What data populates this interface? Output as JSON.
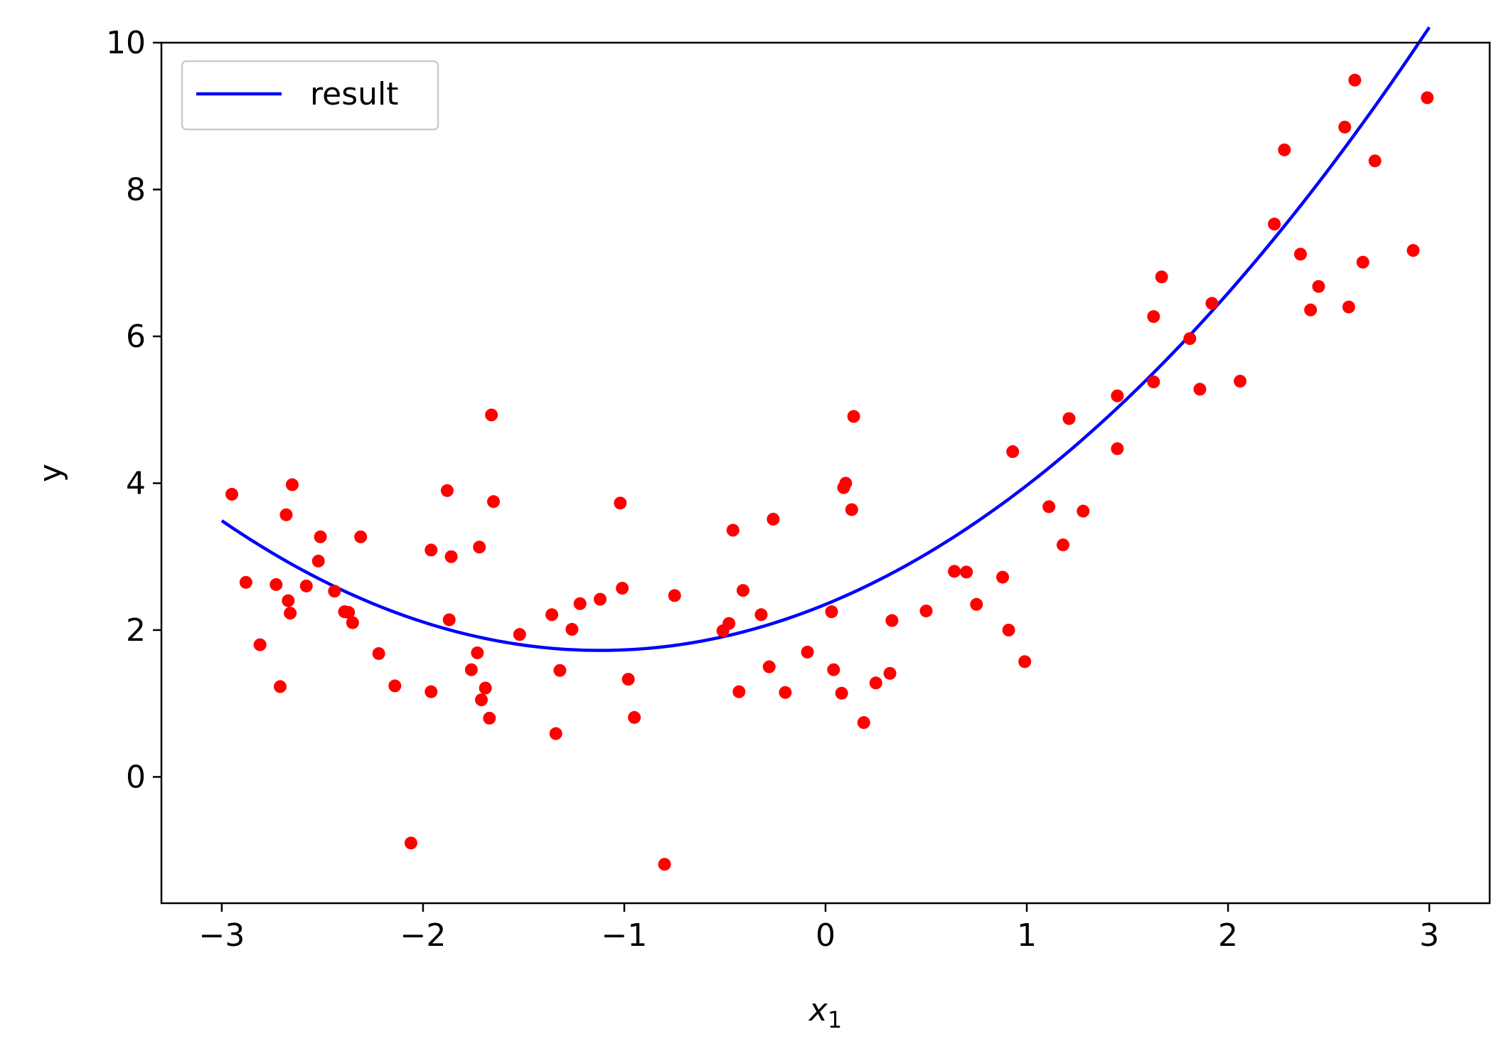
{
  "chart_data": {
    "type": "scatter",
    "title": "",
    "xlabel": "x",
    "xlabel_sub": "1",
    "ylabel": "y",
    "xlim": [
      -3.3,
      3.3
    ],
    "ylim": [
      -1.72,
      10.0
    ],
    "x_ticks": [
      -3,
      -2,
      -1,
      0,
      1,
      2,
      3
    ],
    "x_tick_labels": [
      "−3",
      "−2",
      "−1",
      "0",
      "1",
      "2",
      "3"
    ],
    "y_ticks": [
      0,
      2,
      4,
      6,
      8,
      10
    ],
    "y_tick_labels": [
      "0",
      "2",
      "4",
      "6",
      "8",
      "10"
    ],
    "grid": false,
    "legend": {
      "position": "top-left",
      "entries": [
        "result"
      ]
    },
    "series": [
      {
        "name": "result",
        "kind": "line",
        "color": "#0000ff",
        "equation": "y = 0.5*x^2 + x*1.12 + 2.35",
        "x_range": [
          -3,
          3
        ]
      },
      {
        "kind": "scatter",
        "color": "#ff0000",
        "points": [
          [
            -2.95,
            3.85
          ],
          [
            -2.88,
            2.65
          ],
          [
            -2.81,
            1.8
          ],
          [
            -2.73,
            2.62
          ],
          [
            -2.71,
            1.23
          ],
          [
            -2.68,
            3.57
          ],
          [
            -2.67,
            2.4
          ],
          [
            -2.66,
            2.23
          ],
          [
            -2.65,
            3.98
          ],
          [
            -2.58,
            2.6
          ],
          [
            -2.52,
            2.94
          ],
          [
            -2.51,
            3.27
          ],
          [
            -2.44,
            2.53
          ],
          [
            -2.39,
            2.25
          ],
          [
            -2.37,
            2.24
          ],
          [
            -2.35,
            2.1
          ],
          [
            -2.31,
            3.27
          ],
          [
            -2.22,
            1.68
          ],
          [
            -2.14,
            1.24
          ],
          [
            -2.06,
            -0.9
          ],
          [
            -1.96,
            3.09
          ],
          [
            -1.96,
            1.16
          ],
          [
            -1.88,
            3.9
          ],
          [
            -1.87,
            2.14
          ],
          [
            -1.86,
            3.0
          ],
          [
            -1.76,
            1.46
          ],
          [
            -1.73,
            1.69
          ],
          [
            -1.72,
            3.13
          ],
          [
            -1.71,
            1.05
          ],
          [
            -1.69,
            1.21
          ],
          [
            -1.67,
            0.8
          ],
          [
            -1.66,
            4.93
          ],
          [
            -1.65,
            3.75
          ],
          [
            -1.52,
            1.94
          ],
          [
            -1.36,
            2.21
          ],
          [
            -1.34,
            0.59
          ],
          [
            -1.32,
            1.45
          ],
          [
            -1.26,
            2.01
          ],
          [
            -1.22,
            2.36
          ],
          [
            -1.12,
            2.42
          ],
          [
            -1.02,
            3.73
          ],
          [
            -1.01,
            2.57
          ],
          [
            -0.98,
            1.33
          ],
          [
            -0.95,
            0.81
          ],
          [
            -0.8,
            -1.19
          ],
          [
            -0.75,
            2.47
          ],
          [
            -0.51,
            1.99
          ],
          [
            -0.48,
            2.09
          ],
          [
            -0.46,
            3.36
          ],
          [
            -0.43,
            1.16
          ],
          [
            -0.41,
            2.54
          ],
          [
            -0.32,
            2.21
          ],
          [
            -0.28,
            1.5
          ],
          [
            -0.26,
            3.51
          ],
          [
            -0.2,
            1.15
          ],
          [
            -0.09,
            1.7
          ],
          [
            0.03,
            2.25
          ],
          [
            0.04,
            1.46
          ],
          [
            0.08,
            1.14
          ],
          [
            0.09,
            3.94
          ],
          [
            0.1,
            4.0
          ],
          [
            0.13,
            3.64
          ],
          [
            0.14,
            4.91
          ],
          [
            0.19,
            0.74
          ],
          [
            0.25,
            1.28
          ],
          [
            0.32,
            1.41
          ],
          [
            0.33,
            2.13
          ],
          [
            0.5,
            2.26
          ],
          [
            0.64,
            2.8
          ],
          [
            0.7,
            2.79
          ],
          [
            0.75,
            2.35
          ],
          [
            0.88,
            2.72
          ],
          [
            0.91,
            2.0
          ],
          [
            0.93,
            4.43
          ],
          [
            0.99,
            1.57
          ],
          [
            1.11,
            3.68
          ],
          [
            1.18,
            3.16
          ],
          [
            1.21,
            4.88
          ],
          [
            1.28,
            3.62
          ],
          [
            1.45,
            5.19
          ],
          [
            1.45,
            4.47
          ],
          [
            1.63,
            6.27
          ],
          [
            1.63,
            5.38
          ],
          [
            1.67,
            6.81
          ],
          [
            1.81,
            5.97
          ],
          [
            1.86,
            5.28
          ],
          [
            1.92,
            6.45
          ],
          [
            2.06,
            5.39
          ],
          [
            2.23,
            7.53
          ],
          [
            2.28,
            8.54
          ],
          [
            2.36,
            7.12
          ],
          [
            2.41,
            6.36
          ],
          [
            2.45,
            6.68
          ],
          [
            2.58,
            8.85
          ],
          [
            2.6,
            6.4
          ],
          [
            2.63,
            9.49
          ],
          [
            2.67,
            7.01
          ],
          [
            2.73,
            8.39
          ],
          [
            2.92,
            7.17
          ],
          [
            2.99,
            9.25
          ]
        ]
      }
    ]
  }
}
